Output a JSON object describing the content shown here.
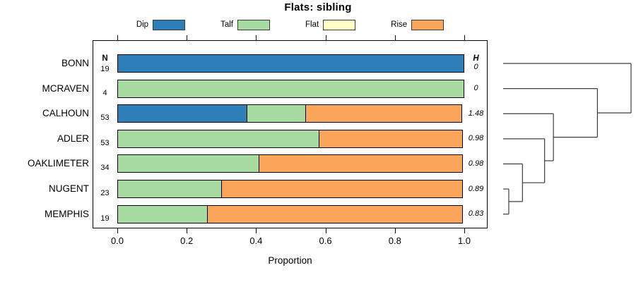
{
  "title": "Flats: sibling",
  "legend": {
    "items": [
      {
        "label": "Dip",
        "color": "#2e7fb8"
      },
      {
        "label": "Talf",
        "color": "#a7dba2"
      },
      {
        "label": "Flat",
        "color": "#ffffc6"
      },
      {
        "label": "Rise",
        "color": "#fba55b"
      }
    ]
  },
  "table": {
    "n_header": "N",
    "h_header": "H"
  },
  "axis": {
    "xlabel": "Proportion",
    "ticks": [
      "0.0",
      "0.2",
      "0.4",
      "0.6",
      "0.8",
      "1.0"
    ]
  },
  "chart_data": {
    "type": "bar",
    "variant": "stacked-horizontal-proportion",
    "title": "Flats: sibling",
    "xlabel": "Proportion",
    "xlim": [
      0,
      1
    ],
    "grid": false,
    "legend_position": "top",
    "categories": [
      "BONN",
      "MCRAVEN",
      "CALHOUN",
      "ADLER",
      "OAKLIMETER",
      "NUGENT",
      "MEMPHIS"
    ],
    "sample_sizes": [
      19,
      4,
      53,
      53,
      34,
      23,
      19
    ],
    "entropy_H": [
      "0",
      "0",
      "1.48",
      "0.98",
      "0.98",
      "0.89",
      "0.83"
    ],
    "series": [
      {
        "name": "Dip",
        "color": "#2e7fb8",
        "values": [
          1,
          0,
          0.377,
          0,
          0,
          0,
          0
        ]
      },
      {
        "name": "Talf",
        "color": "#a7dba2",
        "values": [
          0,
          1,
          0.17,
          0.585,
          0.412,
          0.304,
          0.263
        ]
      },
      {
        "name": "Flat",
        "color": "#ffffc6",
        "values": [
          0,
          0,
          0,
          0,
          0,
          0,
          0
        ]
      },
      {
        "name": "Rise",
        "color": "#fba55b",
        "values": [
          0,
          0,
          0.453,
          0.415,
          0.588,
          0.696,
          0.737
        ]
      }
    ],
    "dendrogram": {
      "side": "right",
      "leaves": [
        "BONN",
        "MCRAVEN",
        "CALHOUN",
        "ADLER",
        "OAKLIMETER",
        "NUGENT",
        "MEMPHIS"
      ],
      "merges": [
        {
          "id": "M0",
          "children": [
            "L5",
            "L6"
          ],
          "height_frac": 0.044
        },
        {
          "id": "M1",
          "children": [
            "L4",
            "M0"
          ],
          "height_frac": 0.151
        },
        {
          "id": "M2",
          "children": [
            "L3",
            "M1"
          ],
          "height_frac": 0.324
        },
        {
          "id": "M3",
          "children": [
            "L2",
            "M2"
          ],
          "height_frac": 0.393
        },
        {
          "id": "M4",
          "children": [
            "L1",
            "M3"
          ],
          "height_frac": 0.737
        },
        {
          "id": "M5",
          "children": [
            "L0",
            "M4"
          ],
          "height_frac": 1.0
        }
      ]
    }
  }
}
